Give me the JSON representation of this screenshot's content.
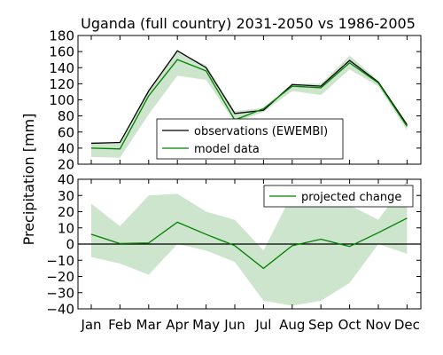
{
  "chart_data": [
    {
      "type": "line",
      "title": "Uganda (full country) 2031-2050 vs 1986-2005",
      "ylabel": "Precipitation [mm]",
      "categories": [
        "Jan",
        "Feb",
        "Mar",
        "Apr",
        "May",
        "Jun",
        "Jul",
        "Aug",
        "Sep",
        "Oct",
        "Nov",
        "Dec"
      ],
      "ylim": [
        20,
        180
      ],
      "yticks": [
        20,
        40,
        60,
        80,
        100,
        120,
        140,
        160,
        180
      ],
      "grid": false,
      "legend_position": "lower-center",
      "series": [
        {
          "name": "observations (EWEMBI)",
          "color": "#000000",
          "values": [
            46,
            47,
            111,
            161,
            140,
            83,
            87,
            119,
            117,
            149,
            122,
            69
          ]
        },
        {
          "name": "model data",
          "color": "#008000",
          "values": [
            40,
            39,
            105,
            150,
            136,
            75,
            89,
            117,
            115,
            146,
            121,
            67
          ],
          "band_lower": [
            29,
            28,
            82,
            130,
            125,
            72,
            85,
            111,
            106,
            138,
            117,
            62
          ],
          "band_upper": [
            47,
            47,
            113,
            160,
            143,
            86,
            90,
            120,
            120,
            155,
            124,
            71
          ],
          "band_color": "#99cc99"
        }
      ]
    },
    {
      "type": "line",
      "categories": [
        "Jan",
        "Feb",
        "Mar",
        "Apr",
        "May",
        "Jun",
        "Jul",
        "Aug",
        "Sep",
        "Oct",
        "Nov",
        "Dec"
      ],
      "ylim": [
        -40,
        40
      ],
      "yticks": [
        -40,
        -30,
        -20,
        -10,
        0,
        10,
        20,
        30,
        40
      ],
      "ytick_labels": [
        "−40",
        "−30",
        "−20",
        "−10",
        "0",
        "10",
        "20",
        "30",
        "40"
      ],
      "zero_line": true,
      "grid": false,
      "legend_position": "top-right",
      "series": [
        {
          "name": "projected change",
          "color": "#008000",
          "values": [
            6,
            0.3,
            0.7,
            13.5,
            6,
            -1,
            -15,
            -1,
            3,
            -1.5,
            7,
            16
          ],
          "band_lower": [
            -8,
            -12,
            -19,
            0,
            -4,
            -11,
            -35,
            -38,
            -35,
            -24,
            0,
            -6
          ],
          "band_upper": [
            25,
            11,
            30,
            31,
            20,
            15,
            -4,
            31,
            33,
            24,
            15,
            39
          ],
          "band_color": "#99cc99"
        }
      ]
    }
  ]
}
